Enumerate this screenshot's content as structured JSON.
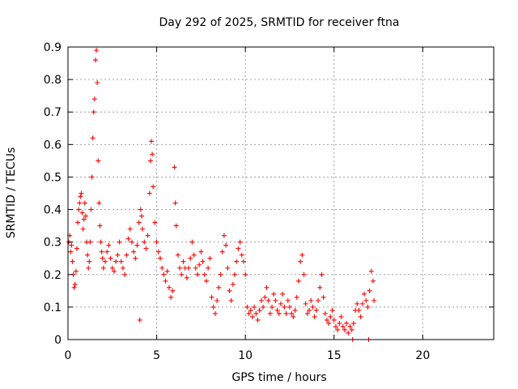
{
  "chart_data": {
    "type": "scatter",
    "title": "Day 292 of 2025, SRMTID for receiver ftna",
    "xlabel": "GPS time / hours",
    "ylabel": "SRMTID / TECUs",
    "xlim": [
      0,
      24
    ],
    "ylim": [
      0,
      0.9
    ],
    "grid": true,
    "x_ticks": [
      0,
      5,
      10,
      15,
      20
    ],
    "x_tick_labels": [
      "0",
      "5",
      "10",
      "15",
      "20"
    ],
    "y_ticks": [
      0,
      0.1,
      0.2,
      0.3,
      0.4,
      0.5,
      0.6,
      0.7,
      0.8,
      0.9
    ],
    "y_tick_labels": [
      "0",
      "0.1",
      "0.2",
      "0.3",
      "0.4",
      "0.5",
      "0.6",
      "0.7",
      "0.8",
      "0.9"
    ],
    "series": [
      {
        "name": "ftna",
        "color": "#ff0000",
        "marker": "plus",
        "points": [
          [
            0.05,
            0.3
          ],
          [
            0.1,
            0.32
          ],
          [
            0.15,
            0.27
          ],
          [
            0.2,
            0.29
          ],
          [
            0.25,
            0.24
          ],
          [
            0.3,
            0.2
          ],
          [
            0.35,
            0.16
          ],
          [
            0.4,
            0.17
          ],
          [
            0.45,
            0.21
          ],
          [
            0.5,
            0.28
          ],
          [
            0.55,
            0.36
          ],
          [
            0.6,
            0.4
          ],
          [
            0.65,
            0.42
          ],
          [
            0.7,
            0.44
          ],
          [
            0.75,
            0.45
          ],
          [
            0.8,
            0.39
          ],
          [
            0.85,
            0.34
          ],
          [
            0.9,
            0.37
          ],
          [
            0.95,
            0.42
          ],
          [
            1.0,
            0.38
          ],
          [
            1.05,
            0.3
          ],
          [
            1.1,
            0.26
          ],
          [
            1.15,
            0.22
          ],
          [
            1.2,
            0.24
          ],
          [
            1.25,
            0.3
          ],
          [
            1.3,
            0.4
          ],
          [
            1.35,
            0.5
          ],
          [
            1.4,
            0.62
          ],
          [
            1.45,
            0.7
          ],
          [
            1.5,
            0.74
          ],
          [
            1.55,
            0.86
          ],
          [
            1.6,
            0.89
          ],
          [
            1.65,
            0.79
          ],
          [
            1.7,
            0.55
          ],
          [
            1.75,
            0.42
          ],
          [
            1.8,
            0.35
          ],
          [
            1.85,
            0.3
          ],
          [
            1.9,
            0.27
          ],
          [
            1.95,
            0.25
          ],
          [
            2.0,
            0.22
          ],
          [
            2.1,
            0.24
          ],
          [
            2.2,
            0.27
          ],
          [
            2.3,
            0.29
          ],
          [
            2.4,
            0.25
          ],
          [
            2.5,
            0.22
          ],
          [
            2.6,
            0.21
          ],
          [
            2.7,
            0.24
          ],
          [
            2.8,
            0.26
          ],
          [
            2.9,
            0.3
          ],
          [
            3.0,
            0.24
          ],
          [
            3.1,
            0.22
          ],
          [
            3.2,
            0.2
          ],
          [
            3.3,
            0.26
          ],
          [
            3.4,
            0.31
          ],
          [
            3.5,
            0.34
          ],
          [
            3.6,
            0.3
          ],
          [
            3.7,
            0.27
          ],
          [
            3.8,
            0.25
          ],
          [
            3.9,
            0.29
          ],
          [
            4.0,
            0.36
          ],
          [
            4.05,
            0.06
          ],
          [
            4.1,
            0.4
          ],
          [
            4.15,
            0.38
          ],
          [
            4.2,
            0.34
          ],
          [
            4.3,
            0.3
          ],
          [
            4.4,
            0.28
          ],
          [
            4.5,
            0.32
          ],
          [
            4.6,
            0.45
          ],
          [
            4.65,
            0.55
          ],
          [
            4.7,
            0.61
          ],
          [
            4.75,
            0.57
          ],
          [
            4.8,
            0.47
          ],
          [
            4.9,
            0.36
          ],
          [
            5.0,
            0.3
          ],
          [
            5.1,
            0.27
          ],
          [
            5.2,
            0.25
          ],
          [
            5.3,
            0.22
          ],
          [
            5.4,
            0.2
          ],
          [
            5.5,
            0.18
          ],
          [
            5.6,
            0.21
          ],
          [
            5.7,
            0.16
          ],
          [
            5.8,
            0.13
          ],
          [
            5.9,
            0.15
          ],
          [
            6.0,
            0.53
          ],
          [
            6.05,
            0.42
          ],
          [
            6.1,
            0.35
          ],
          [
            6.2,
            0.26
          ],
          [
            6.3,
            0.22
          ],
          [
            6.4,
            0.2
          ],
          [
            6.5,
            0.24
          ],
          [
            6.6,
            0.22
          ],
          [
            6.7,
            0.19
          ],
          [
            6.8,
            0.22
          ],
          [
            6.9,
            0.25
          ],
          [
            7.0,
            0.3
          ],
          [
            7.1,
            0.26
          ],
          [
            7.2,
            0.22
          ],
          [
            7.3,
            0.2
          ],
          [
            7.4,
            0.23
          ],
          [
            7.5,
            0.27
          ],
          [
            7.6,
            0.24
          ],
          [
            7.7,
            0.2
          ],
          [
            7.8,
            0.18
          ],
          [
            7.9,
            0.22
          ],
          [
            8.0,
            0.25
          ],
          [
            8.1,
            0.13
          ],
          [
            8.2,
            0.1
          ],
          [
            8.3,
            0.08
          ],
          [
            8.4,
            0.12
          ],
          [
            8.5,
            0.16
          ],
          [
            8.6,
            0.2
          ],
          [
            8.7,
            0.27
          ],
          [
            8.8,
            0.32
          ],
          [
            8.9,
            0.29
          ],
          [
            9.0,
            0.22
          ],
          [
            9.1,
            0.15
          ],
          [
            9.2,
            0.12
          ],
          [
            9.3,
            0.17
          ],
          [
            9.4,
            0.2
          ],
          [
            9.5,
            0.24
          ],
          [
            9.6,
            0.28
          ],
          [
            9.7,
            0.3
          ],
          [
            9.8,
            0.26
          ],
          [
            9.9,
            0.24
          ],
          [
            10.0,
            0.2
          ],
          [
            10.1,
            0.1
          ],
          [
            10.2,
            0.08
          ],
          [
            10.3,
            0.09
          ],
          [
            10.4,
            0.07
          ],
          [
            10.5,
            0.1
          ],
          [
            10.6,
            0.08
          ],
          [
            10.7,
            0.06
          ],
          [
            10.8,
            0.09
          ],
          [
            10.9,
            0.12
          ],
          [
            11.0,
            0.1
          ],
          [
            11.1,
            0.13
          ],
          [
            11.2,
            0.16
          ],
          [
            11.3,
            0.12
          ],
          [
            11.4,
            0.08
          ],
          [
            11.5,
            0.1
          ],
          [
            11.6,
            0.14
          ],
          [
            11.7,
            0.12
          ],
          [
            11.8,
            0.09
          ],
          [
            11.9,
            0.08
          ],
          [
            12.0,
            0.11
          ],
          [
            12.1,
            0.14
          ],
          [
            12.2,
            0.1
          ],
          [
            12.3,
            0.08
          ],
          [
            12.4,
            0.12
          ],
          [
            12.5,
            0.1
          ],
          [
            12.6,
            0.08
          ],
          [
            12.7,
            0.07
          ],
          [
            12.8,
            0.09
          ],
          [
            12.9,
            0.13
          ],
          [
            13.0,
            0.18
          ],
          [
            13.1,
            0.24
          ],
          [
            13.2,
            0.26
          ],
          [
            13.3,
            0.2
          ],
          [
            13.4,
            0.11
          ],
          [
            13.5,
            0.08
          ],
          [
            13.6,
            0.09
          ],
          [
            13.7,
            0.12
          ],
          [
            13.8,
            0.1
          ],
          [
            13.9,
            0.07
          ],
          [
            14.0,
            0.09
          ],
          [
            14.1,
            0.12
          ],
          [
            14.2,
            0.16
          ],
          [
            14.3,
            0.2
          ],
          [
            14.4,
            0.13
          ],
          [
            14.5,
            0.08
          ],
          [
            14.6,
            0.06
          ],
          [
            14.7,
            0.05
          ],
          [
            14.8,
            0.07
          ],
          [
            14.9,
            0.09
          ],
          [
            15.0,
            0.06
          ],
          [
            15.1,
            0.04
          ],
          [
            15.2,
            0.03
          ],
          [
            15.3,
            0.05
          ],
          [
            15.4,
            0.07
          ],
          [
            15.5,
            0.04
          ],
          [
            15.6,
            0.03
          ],
          [
            15.7,
            0.05
          ],
          [
            15.8,
            0.02
          ],
          [
            15.9,
            0.04
          ],
          [
            16.0,
            0.03
          ],
          [
            16.1,
            0.05
          ],
          [
            16.2,
            0.09
          ],
          [
            16.3,
            0.11
          ],
          [
            16.4,
            0.09
          ],
          [
            16.5,
            0.07
          ],
          [
            16.6,
            0.11
          ],
          [
            16.7,
            0.14
          ],
          [
            16.8,
            0.12
          ],
          [
            16.9,
            0.1
          ],
          [
            17.0,
            0.15
          ],
          [
            17.1,
            0.21
          ],
          [
            17.2,
            0.18
          ],
          [
            17.25,
            0.12
          ],
          [
            16.05,
            0.0
          ],
          [
            16.95,
            0.0
          ]
        ]
      }
    ]
  }
}
